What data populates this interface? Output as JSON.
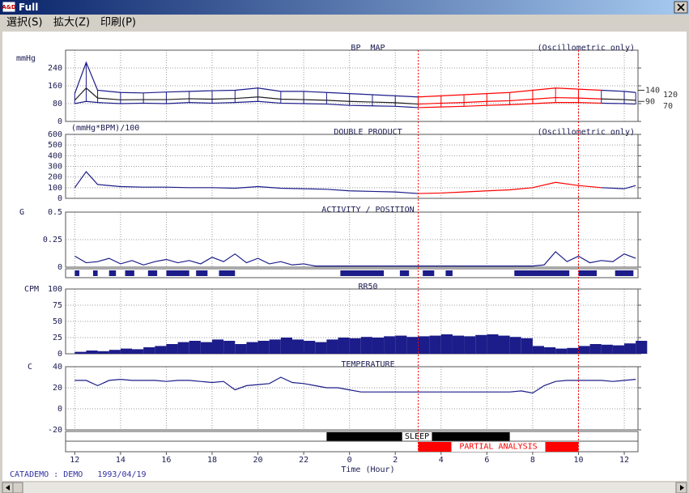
{
  "window": {
    "icon": "A&D",
    "title": "Full"
  },
  "menu": [
    "選択(S)",
    "拡大(Z)",
    "印刷(P)"
  ],
  "status": "CATADEMO : DEMO   1993/04/19",
  "time_axis": {
    "label": "Time (Hour)",
    "xlim": [
      11.6,
      36.6
    ],
    "xticks": [
      12,
      14,
      16,
      18,
      20,
      22,
      {
        "value": 24,
        "label": "0"
      },
      {
        "value": 26,
        "label": "2"
      },
      {
        "value": 28,
        "label": "4"
      },
      {
        "value": 30,
        "label": "6"
      },
      {
        "value": 32,
        "label": "8"
      },
      {
        "value": 34,
        "label": "10"
      },
      {
        "value": 36,
        "label": "12"
      }
    ],
    "grid": true
  },
  "sleep": {
    "label": "SLEEP",
    "color": "#000000",
    "segments": [
      [
        23,
        26.3
      ],
      [
        27.6,
        31
      ]
    ]
  },
  "partial_analysis": {
    "label": "PARTIAL ANALYSIS",
    "color": "#ff0000",
    "start": 27,
    "end": 34
  },
  "chart_data": [
    {
      "type": "line",
      "title": "BP  MAP",
      "unit": "mmHg",
      "note": "(Oscillometric only)",
      "ylim": [
        0,
        320
      ],
      "yticks": [
        0,
        80,
        160,
        240
      ],
      "grid": true,
      "highlight_partial": true,
      "range_bars": true,
      "day_limits": [
        140,
        90
      ],
      "night_limits": [
        120,
        70
      ],
      "x": [
        12,
        12.5,
        13,
        14,
        15,
        16,
        17,
        18,
        19,
        20,
        21,
        22,
        23,
        24,
        25,
        26,
        27,
        28,
        29,
        30,
        31,
        32,
        33,
        34,
        35,
        36,
        36.5
      ],
      "series": [
        {
          "color": "#1c1c8a",
          "values": [
            125,
            265,
            140,
            130,
            128,
            132,
            135,
            138,
            140,
            150,
            135,
            135,
            130,
            125,
            120,
            115,
            110,
            115,
            120,
            125,
            130,
            140,
            150,
            145,
            140,
            135,
            130
          ]
        },
        {
          "color": "#1c1c8a",
          "values": [
            80,
            90,
            85,
            80,
            82,
            80,
            85,
            82,
            85,
            90,
            82,
            80,
            78,
            72,
            70,
            68,
            62,
            65,
            68,
            72,
            75,
            80,
            85,
            85,
            82,
            80,
            78
          ]
        },
        {
          "color": "#202020",
          "values": [
            95,
            150,
            105,
            97,
            98,
            98,
            102,
            100,
            103,
            110,
            100,
            98,
            95,
            90,
            87,
            84,
            78,
            82,
            85,
            90,
            93,
            100,
            107,
            105,
            101,
            98,
            95
          ]
        }
      ]
    },
    {
      "type": "line",
      "title": "DOUBLE PRODUCT",
      "unit": "(mmHg*BPM)/100",
      "note": "(Oscillometric only)",
      "ylim": [
        0,
        600
      ],
      "yticks": [
        0,
        100,
        200,
        300,
        400,
        500,
        600
      ],
      "grid": true,
      "highlight_partial": true,
      "x": [
        12,
        12.5,
        13,
        14,
        15,
        16,
        17,
        18,
        19,
        20,
        21,
        22,
        23,
        24,
        25,
        26,
        27,
        28,
        29,
        30,
        31,
        32,
        33,
        34,
        35,
        36,
        36.5
      ],
      "series": [
        {
          "color": "#1c1c8a",
          "values": [
            100,
            250,
            130,
            110,
            105,
            105,
            100,
            100,
            95,
            110,
            95,
            90,
            85,
            70,
            65,
            60,
            45,
            50,
            60,
            70,
            80,
            100,
            150,
            120,
            100,
            90,
            120
          ]
        }
      ]
    },
    {
      "type": "line",
      "title": "ACTIVITY / POSITION",
      "unit": "G",
      "ylim": [
        0,
        0.5
      ],
      "yticks": [
        0,
        0.25,
        0.5
      ],
      "grid": true,
      "x": [
        12,
        12.5,
        13,
        13.5,
        14,
        14.5,
        15,
        15.5,
        16,
        16.5,
        17,
        17.5,
        18,
        18.5,
        19,
        19.5,
        20,
        20.5,
        21,
        21.5,
        22,
        22.5,
        23,
        23.5,
        24,
        24.5,
        25,
        25.5,
        26,
        26.5,
        27,
        27.5,
        28,
        28.5,
        29,
        29.5,
        30,
        30.5,
        31,
        31.5,
        32,
        32.5,
        33,
        33.5,
        34,
        34.5,
        35,
        35.5,
        36,
        36.5
      ],
      "series": [
        {
          "color": "#1c1c8a",
          "values": [
            0.1,
            0.04,
            0.05,
            0.08,
            0.03,
            0.06,
            0.02,
            0.05,
            0.07,
            0.04,
            0.06,
            0.03,
            0.09,
            0.05,
            0.12,
            0.04,
            0.08,
            0.03,
            0.05,
            0.02,
            0.03,
            0.01,
            0.01,
            0.01,
            0.01,
            0.01,
            0.01,
            0.01,
            0.01,
            0.01,
            0.01,
            0.01,
            0.01,
            0.01,
            0.01,
            0.01,
            0.01,
            0.01,
            0.01,
            0.01,
            0.01,
            0.02,
            0.14,
            0.05,
            0.1,
            0.04,
            0.06,
            0.05,
            0.12,
            0.08
          ]
        }
      ],
      "position": {
        "color": "#1c1c8a",
        "segments": [
          [
            12,
            12.2
          ],
          [
            12.8,
            13
          ],
          [
            13.5,
            13.8
          ],
          [
            14.2,
            14.6
          ],
          [
            15.2,
            15.6
          ],
          [
            16,
            17
          ],
          [
            17.3,
            17.8
          ],
          [
            18.3,
            19
          ],
          [
            23.6,
            25.5
          ],
          [
            26.2,
            26.6
          ],
          [
            27.2,
            27.7
          ],
          [
            28.2,
            28.5
          ],
          [
            31.2,
            33.6
          ],
          [
            34,
            34.8
          ],
          [
            35.6,
            36.4
          ]
        ]
      }
    },
    {
      "type": "bar",
      "title": "RR50",
      "unit": "CPM",
      "ylim": [
        0,
        100
      ],
      "yticks": [
        0,
        25,
        50,
        75,
        100
      ],
      "grid": true,
      "x": [
        12,
        12.5,
        13,
        13.5,
        14,
        14.5,
        15,
        15.5,
        16,
        16.5,
        17,
        17.5,
        18,
        18.5,
        19,
        19.5,
        20,
        20.5,
        21,
        21.5,
        22,
        22.5,
        23,
        23.5,
        24,
        24.5,
        25,
        25.5,
        26,
        26.5,
        27,
        27.5,
        28,
        28.5,
        29,
        29.5,
        30,
        30.5,
        31,
        31.5,
        32,
        32.5,
        33,
        33.5,
        34,
        34.5,
        35,
        35.5,
        36,
        36.5
      ],
      "series": [
        {
          "color": "#1c1c8a",
          "values": [
            3,
            5,
            4,
            6,
            8,
            7,
            10,
            12,
            15,
            18,
            20,
            18,
            22,
            20,
            15,
            18,
            20,
            22,
            25,
            22,
            20,
            18,
            22,
            25,
            24,
            26,
            25,
            27,
            28,
            26,
            27,
            28,
            30,
            28,
            27,
            29,
            30,
            28,
            26,
            24,
            12,
            10,
            8,
            9,
            12,
            15,
            14,
            13,
            16,
            20
          ]
        }
      ]
    },
    {
      "type": "line",
      "title": "TEMPERATURE",
      "unit": "C",
      "ylim": [
        -20,
        40
      ],
      "yticks": [
        -20,
        0,
        20,
        40
      ],
      "grid": true,
      "x": [
        12,
        12.5,
        13,
        13.5,
        14,
        14.5,
        15,
        15.5,
        16,
        16.5,
        17,
        17.5,
        18,
        18.5,
        19,
        19.5,
        20,
        20.5,
        21,
        21.5,
        22,
        22.5,
        23,
        23.5,
        24,
        24.5,
        25,
        25.5,
        26,
        26.5,
        27,
        27.5,
        28,
        28.5,
        29,
        29.5,
        30,
        30.5,
        31,
        31.5,
        32,
        32.5,
        33,
        33.5,
        34,
        34.5,
        35,
        35.5,
        36,
        36.5
      ],
      "series": [
        {
          "color": "#1c1c8a",
          "values": [
            27,
            27,
            22,
            27,
            28,
            27,
            27,
            27,
            26,
            27,
            27,
            26,
            25,
            26,
            18,
            22,
            23,
            24,
            30,
            25,
            24,
            22,
            20,
            20,
            18,
            16,
            16,
            16,
            16,
            16,
            16,
            16,
            16,
            16,
            16,
            16,
            16,
            16,
            16,
            17,
            15,
            22,
            26,
            27,
            27,
            27,
            27,
            26,
            27,
            28
          ]
        }
      ]
    }
  ]
}
